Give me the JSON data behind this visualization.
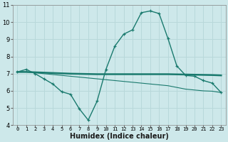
{
  "xlabel": "Humidex (Indice chaleur)",
  "bg_color": "#cde8ea",
  "grid_color": "#b8d8da",
  "line_color": "#1a7a6e",
  "xlim": [
    -0.5,
    23.5
  ],
  "ylim": [
    4,
    11
  ],
  "xticks": [
    0,
    1,
    2,
    3,
    4,
    5,
    6,
    7,
    8,
    9,
    10,
    11,
    12,
    13,
    14,
    15,
    16,
    17,
    18,
    19,
    20,
    21,
    22,
    23
  ],
  "yticks": [
    4,
    5,
    6,
    7,
    8,
    9,
    10,
    11
  ],
  "line1_x": [
    0,
    1,
    2,
    3,
    4,
    5,
    6,
    7,
    8,
    9,
    10,
    11,
    12,
    13,
    14,
    15,
    16,
    17,
    18,
    19,
    20,
    21,
    22,
    23
  ],
  "line1_y": [
    7.1,
    7.25,
    7.0,
    6.7,
    6.4,
    5.95,
    5.8,
    4.95,
    4.3,
    5.4,
    7.25,
    8.6,
    9.3,
    9.55,
    10.55,
    10.65,
    10.5,
    9.05,
    7.45,
    6.9,
    6.85,
    6.6,
    6.45,
    5.9
  ],
  "line2_x": [
    0,
    1,
    2,
    3,
    4,
    5,
    6,
    7,
    8,
    9,
    10,
    11,
    12,
    13,
    14,
    15,
    16,
    17,
    18,
    19,
    20,
    21,
    22,
    23
  ],
  "line2_y": [
    7.1,
    7.1,
    7.05,
    7.0,
    6.95,
    6.9,
    6.85,
    6.8,
    6.75,
    6.7,
    6.65,
    6.6,
    6.55,
    6.5,
    6.45,
    6.4,
    6.35,
    6.3,
    6.2,
    6.1,
    6.05,
    6.0,
    5.98,
    5.9
  ],
  "line3_x": [
    0,
    1,
    2,
    3,
    4,
    5,
    6,
    7,
    8,
    9,
    10,
    11,
    12,
    13,
    14,
    15,
    16,
    17,
    18,
    19,
    20,
    21,
    22,
    23
  ],
  "line3_y": [
    7.1,
    7.1,
    7.08,
    7.06,
    7.04,
    7.02,
    7.0,
    6.99,
    6.98,
    6.97,
    6.97,
    6.97,
    6.97,
    6.97,
    6.97,
    6.97,
    6.97,
    6.97,
    6.96,
    6.95,
    6.94,
    6.93,
    6.92,
    6.9
  ],
  "xlabel_fontsize": 7,
  "ytick_fontsize": 6,
  "xtick_fontsize": 5
}
